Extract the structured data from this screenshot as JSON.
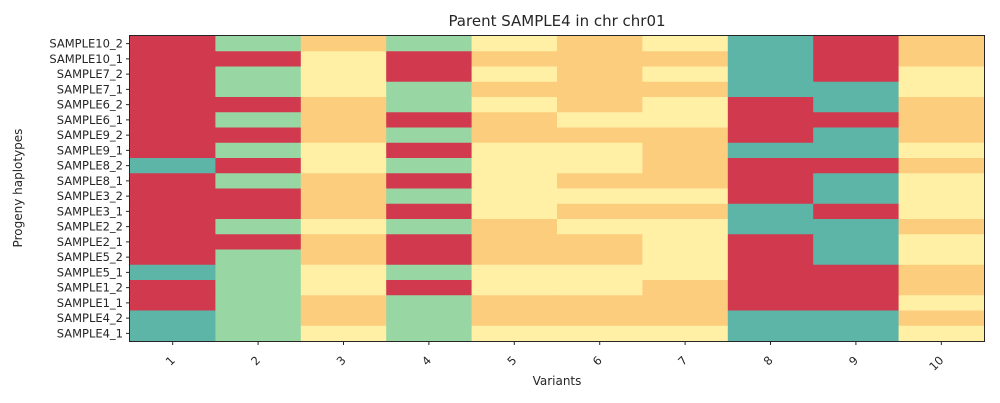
{
  "chart_data": {
    "type": "heatmap",
    "title": "Parent SAMPLE4 in chr chr01",
    "xlabel": "Variants",
    "ylabel": "Progeny haplotypes",
    "columns": [
      "1",
      "2",
      "3",
      "4",
      "5",
      "6",
      "7",
      "8",
      "9",
      "10"
    ],
    "rows": [
      "SAMPLE10_2",
      "SAMPLE10_1",
      "SAMPLE7_2",
      "SAMPLE7_1",
      "SAMPLE6_2",
      "SAMPLE6_1",
      "SAMPLE9_2",
      "SAMPLE9_1",
      "SAMPLE8_2",
      "SAMPLE8_1",
      "SAMPLE3_2",
      "SAMPLE3_1",
      "SAMPLE2_2",
      "SAMPLE2_1",
      "SAMPLE5_2",
      "SAMPLE5_1",
      "SAMPLE1_2",
      "SAMPLE1_1",
      "SAMPLE4_2",
      "SAMPLE4_1"
    ],
    "values": [
      [
        0,
        3,
        2,
        3,
        1,
        2,
        1,
        4,
        0,
        2
      ],
      [
        0,
        0,
        1,
        0,
        2,
        2,
        2,
        4,
        0,
        2
      ],
      [
        0,
        3,
        1,
        0,
        1,
        2,
        1,
        4,
        0,
        1
      ],
      [
        0,
        3,
        1,
        3,
        2,
        2,
        2,
        4,
        4,
        1
      ],
      [
        0,
        0,
        2,
        3,
        1,
        2,
        1,
        0,
        4,
        2
      ],
      [
        0,
        3,
        2,
        0,
        2,
        1,
        1,
        0,
        0,
        2
      ],
      [
        0,
        0,
        2,
        3,
        2,
        2,
        2,
        0,
        4,
        2
      ],
      [
        0,
        3,
        1,
        0,
        1,
        1,
        2,
        4,
        4,
        1
      ],
      [
        4,
        0,
        1,
        3,
        1,
        1,
        2,
        0,
        0,
        2
      ],
      [
        0,
        3,
        2,
        0,
        1,
        2,
        2,
        0,
        4,
        1
      ],
      [
        0,
        0,
        2,
        3,
        1,
        1,
        1,
        0,
        4,
        1
      ],
      [
        0,
        0,
        2,
        0,
        1,
        2,
        2,
        4,
        0,
        1
      ],
      [
        0,
        3,
        1,
        3,
        2,
        1,
        1,
        4,
        4,
        2
      ],
      [
        0,
        0,
        2,
        0,
        2,
        2,
        1,
        0,
        4,
        1
      ],
      [
        0,
        3,
        2,
        0,
        2,
        2,
        1,
        0,
        4,
        1
      ],
      [
        4,
        3,
        1,
        3,
        1,
        1,
        1,
        0,
        0,
        2
      ],
      [
        0,
        3,
        1,
        0,
        1,
        1,
        2,
        0,
        0,
        2
      ],
      [
        0,
        3,
        2,
        3,
        2,
        2,
        2,
        0,
        0,
        1
      ],
      [
        4,
        3,
        2,
        3,
        2,
        2,
        2,
        4,
        4,
        2
      ],
      [
        4,
        3,
        1,
        3,
        1,
        1,
        1,
        4,
        4,
        1
      ]
    ],
    "color_scale": [
      "#d13a4e",
      "#fff0a6",
      "#fdcd7e",
      "#98d6a3",
      "#5db5a8"
    ],
    "grid": false,
    "legend": "none"
  }
}
